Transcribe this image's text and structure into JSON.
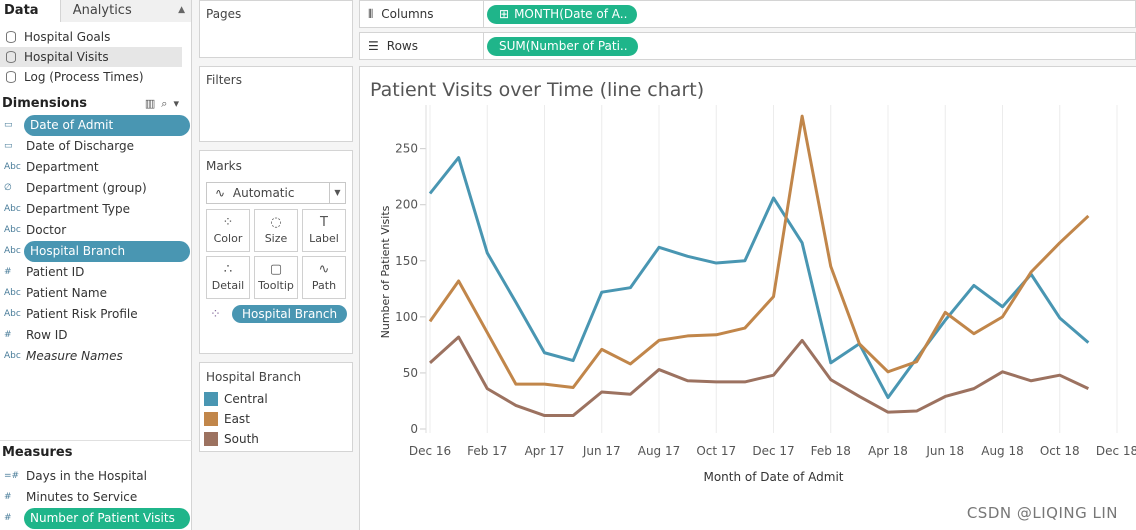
{
  "data_tab": "Data",
  "analytics_tab": "Analytics",
  "sources": [
    "Hospital Goals",
    "Hospital Visits",
    "Log (Process Times)"
  ],
  "dimensions_title": "Dimensions",
  "dimensions": [
    {
      "icon": "calendar-icon",
      "glyph": "▭",
      "label": "Date of Admit",
      "pill": true
    },
    {
      "icon": "calendar-icon",
      "glyph": "▭",
      "label": "Date of Discharge",
      "pill": false
    },
    {
      "icon": "abc-icon",
      "glyph": "Abc",
      "label": "Department",
      "pill": false
    },
    {
      "icon": "paperclip-icon",
      "glyph": "∅",
      "label": "Department (group)",
      "pill": false
    },
    {
      "icon": "abc-icon",
      "glyph": "Abc",
      "label": "Department Type",
      "pill": false
    },
    {
      "icon": "abc-icon",
      "glyph": "Abc",
      "label": "Doctor",
      "pill": false
    },
    {
      "icon": "abc-icon",
      "glyph": "Abc",
      "label": "Hospital Branch",
      "pill": true
    },
    {
      "icon": "number-icon",
      "glyph": "#",
      "label": "Patient ID",
      "pill": false
    },
    {
      "icon": "abc-icon",
      "glyph": "Abc",
      "label": "Patient Name",
      "pill": false
    },
    {
      "icon": "abc-icon",
      "glyph": "Abc",
      "label": "Patient Risk Profile",
      "pill": false
    },
    {
      "icon": "number-icon",
      "glyph": "#",
      "label": "Row ID",
      "pill": false
    },
    {
      "icon": "abc-icon",
      "glyph": "Abc",
      "label": "Measure Names",
      "pill": false,
      "italic": true
    }
  ],
  "measures_title": "Measures",
  "measures": [
    {
      "icon": "calc-number-icon",
      "glyph": "=#",
      "label": "Days in the Hospital",
      "pill": false
    },
    {
      "icon": "number-icon",
      "glyph": "#",
      "label": "Minutes to Service",
      "pill": false
    },
    {
      "icon": "number-icon",
      "glyph": "#",
      "label": "Number of Patient Visits",
      "pill": true
    }
  ],
  "pages_label": "Pages",
  "filters_label": "Filters",
  "marks_label": "Marks",
  "mark_type": "Automatic",
  "mark_buttons": [
    {
      "name": "color",
      "glyph": "⁘",
      "label": "Color"
    },
    {
      "name": "size",
      "glyph": "◌",
      "label": "Size"
    },
    {
      "name": "label",
      "glyph": "T",
      "label": "Label"
    },
    {
      "name": "detail",
      "glyph": "∴",
      "label": "Detail"
    },
    {
      "name": "tooltip",
      "glyph": "▢",
      "label": "Tooltip"
    },
    {
      "name": "path",
      "glyph": "∿",
      "label": "Path"
    }
  ],
  "marks_pill": "Hospital Branch",
  "legend_title": "Hospital Branch",
  "legend": [
    {
      "label": "Central",
      "color": "#4996b2"
    },
    {
      "label": "East",
      "color": "#c1864a"
    },
    {
      "label": "South",
      "color": "#9c7260"
    }
  ],
  "columns_label": "Columns",
  "columns_pill": "MONTH(Date of A..",
  "rows_label": "Rows",
  "rows_pill": "SUM(Number of Pati..",
  "watermark": "CSDN @LIQING LIN",
  "chart_data": {
    "type": "line",
    "title": "Patient Visits over Time (line chart)",
    "xlabel": "Month of Date of Admit",
    "ylabel": "Number of Patient Visits",
    "ylim": [
      0,
      280
    ],
    "yticks": [
      0,
      50,
      100,
      150,
      200,
      250
    ],
    "x": [
      "Dec 16",
      "Jan 17",
      "Feb 17",
      "Mar 17",
      "Apr 17",
      "May 17",
      "Jun 17",
      "Jul 17",
      "Aug 17",
      "Sep 17",
      "Oct 17",
      "Nov 17",
      "Dec 17",
      "Jan 18",
      "Feb 18",
      "Mar 18",
      "Apr 18",
      "May 18",
      "Jun 18",
      "Jul 18",
      "Aug 18",
      "Sep 18",
      "Oct 18",
      "Nov 18",
      "Dec 18"
    ],
    "xtick_labels": [
      "Dec 16",
      "",
      "Feb 17",
      "",
      "Apr 17",
      "",
      "Jun 17",
      "",
      "Aug 17",
      "",
      "Oct 17",
      "",
      "Dec 17",
      "",
      "Feb 18",
      "",
      "Apr 18",
      "",
      "Jun 18",
      "",
      "Aug 18",
      "",
      "Oct 18",
      "",
      "Dec 18"
    ],
    "series": [
      {
        "name": "Central",
        "color": "#4996b2",
        "values": [
          210,
          242,
          157,
          113,
          68,
          61,
          122,
          126,
          162,
          154,
          148,
          150,
          206,
          166,
          59,
          76,
          28,
          63,
          97,
          128,
          109,
          138,
          99,
          77,
          null
        ]
      },
      {
        "name": "East",
        "color": "#c1864a",
        "values": [
          96,
          132,
          86,
          40,
          40,
          37,
          71,
          58,
          79,
          83,
          84,
          90,
          118,
          279,
          145,
          76,
          51,
          60,
          104,
          85,
          100,
          140,
          166,
          190,
          null
        ]
      },
      {
        "name": "South",
        "color": "#9c7260",
        "values": [
          59,
          82,
          36,
          21,
          12,
          12,
          33,
          31,
          53,
          43,
          42,
          42,
          48,
          79,
          44,
          29,
          15,
          16,
          29,
          36,
          51,
          43,
          48,
          36,
          null
        ]
      }
    ]
  }
}
